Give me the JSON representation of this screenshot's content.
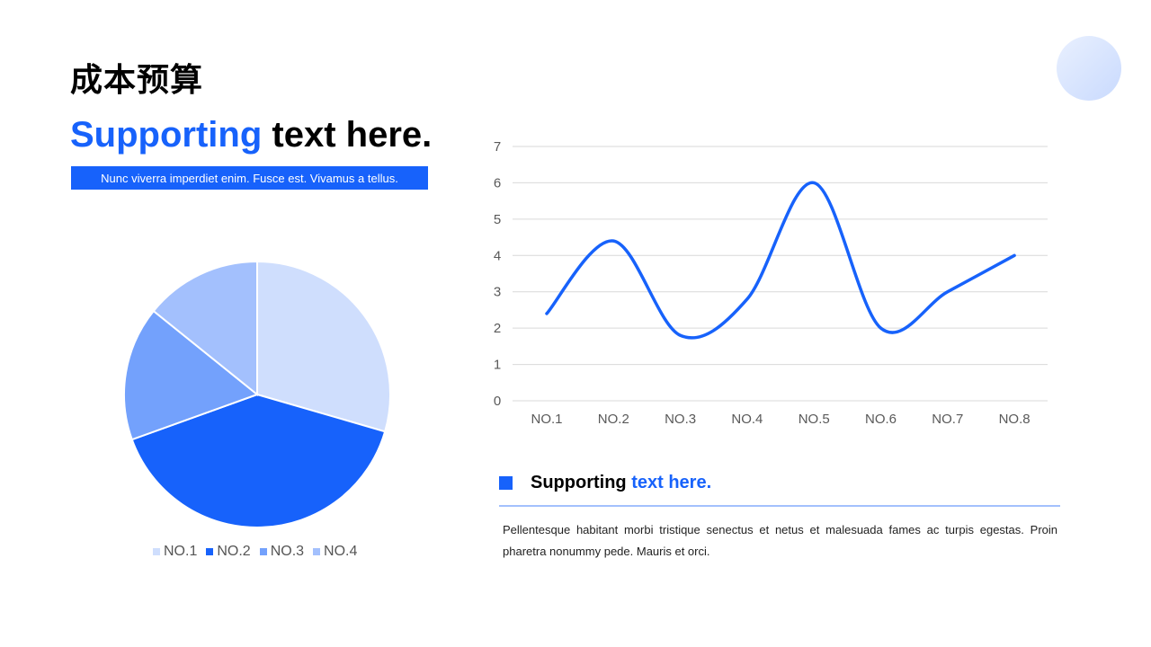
{
  "title": "成本预算",
  "headline": {
    "highlight": "Supporting",
    "rest": "text here."
  },
  "banner_text": "Nunc viverra imperdiet enim. Fusce est. Vivamus a tellus.",
  "section": {
    "highlight_prefix": "Supporting",
    "highlight": "text here.",
    "paragraph": "Pellentesque habitant morbi tristique senectus et netus et malesuada fames ac turpis egestas. Proin pharetra nonummy pede. Mauris et orci."
  },
  "colors": {
    "accent": "#1762fb"
  },
  "chart_data": [
    {
      "type": "pie",
      "categories": [
        "NO.1",
        "NO.2",
        "NO.3",
        "NO.4"
      ],
      "values": [
        29.5,
        40,
        16.3,
        14.2
      ],
      "colors": [
        "#cfdefd",
        "#1762fb",
        "#73a1fc",
        "#a3c0fd"
      ],
      "legend": "bottom"
    },
    {
      "type": "line",
      "smooth": true,
      "categories": [
        "NO.1",
        "NO.2",
        "NO.3",
        "NO.4",
        "NO.5",
        "NO.6",
        "NO.7",
        "NO.8"
      ],
      "values": [
        2.4,
        4.4,
        1.8,
        2.8,
        6,
        2,
        3,
        4
      ],
      "ylim": [
        0,
        7
      ],
      "yticks": [
        "0",
        "1",
        "2",
        "3",
        "4",
        "5",
        "6",
        "7"
      ],
      "grid": true,
      "color": "#1762fb"
    }
  ]
}
